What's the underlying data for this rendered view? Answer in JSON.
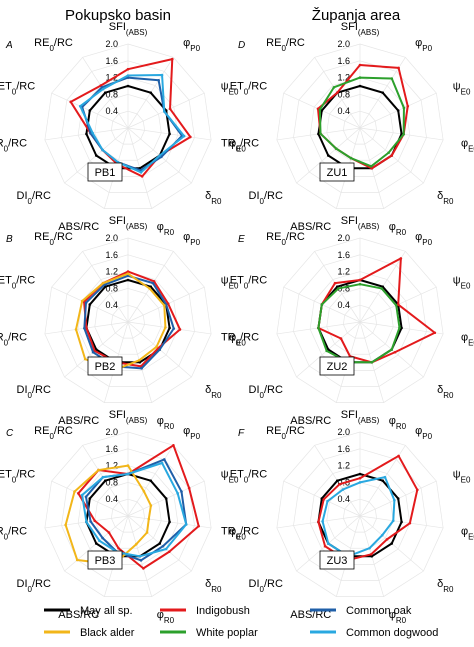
{
  "columns": [
    "Pokupsko basin",
    "Županja area"
  ],
  "series_styles": {
    "May all sp.": "#000000",
    "Indigobush": "#e31a1c",
    "Common oak": "#1f5fa8",
    "Black alder": "#f2b619",
    "White poplar": "#2ca02c",
    "Common dogwood": "#29a8e0"
  },
  "legend": {
    "items": [
      {
        "name": "May all sp.",
        "color": "#000000"
      },
      {
        "name": "Indigobush",
        "color": "#e31a1c"
      },
      {
        "name": "Common oak",
        "color": "#1f5fa8"
      },
      {
        "name": "Black alder",
        "color": "#f2b619"
      },
      {
        "name": "White poplar",
        "color": "#2ca02c"
      },
      {
        "name": "Common dogwood",
        "color": "#29a8e0"
      }
    ]
  },
  "chart_data": [
    {
      "type": "radar",
      "panel": "A",
      "id": "PB1",
      "column": "Pokupsko basin",
      "axes": [
        "SFI(ABS)",
        "φP0",
        "ψE0",
        "φE0",
        "δR0",
        "φR0",
        "ABS/RC",
        "DI0/RC",
        "TR0/RC",
        "ET0/RC",
        "RE0/RC"
      ],
      "rlim": [
        0,
        2.0
      ],
      "ticks": [
        0.4,
        0.8,
        1.2,
        1.6,
        2.0
      ],
      "series": [
        {
          "name": "May all sp.",
          "values": [
            1.0,
            1.0,
            1.0,
            1.0,
            1.0,
            1.0,
            1.0,
            1.0,
            1.0,
            1.0,
            1.0
          ]
        },
        {
          "name": "Indigobush",
          "values": [
            1.4,
            1.95,
            1.1,
            1.5,
            1.0,
            1.2,
            0.9,
            0.8,
            0.9,
            1.5,
            1.2
          ]
        },
        {
          "name": "Common oak",
          "values": [
            1.2,
            1.35,
            0.95,
            1.3,
            1.05,
            1.05,
            0.85,
            0.8,
            0.9,
            1.2,
            1.15
          ]
        },
        {
          "name": "Common dogwood",
          "values": [
            1.25,
            1.5,
            0.95,
            1.35,
            1.0,
            1.1,
            0.85,
            0.8,
            0.85,
            1.25,
            1.1
          ]
        }
      ]
    },
    {
      "type": "radar",
      "panel": "B",
      "id": "PB2",
      "column": "Pokupsko basin",
      "axes": [
        "SFI(ABS)",
        "φP0",
        "ψE0",
        "φE0",
        "δR0",
        "φR0",
        "ABS/RC",
        "DI0/RC",
        "TR0/RC",
        "ET0/RC",
        "RE0/RC"
      ],
      "rlim": [
        0,
        2.0
      ],
      "ticks": [
        0.4,
        0.8,
        1.2,
        1.6,
        2.0
      ],
      "series": [
        {
          "name": "May all sp.",
          "values": [
            1.0,
            1.0,
            1.0,
            1.0,
            1.0,
            1.0,
            1.0,
            1.0,
            1.0,
            1.0,
            1.0
          ]
        },
        {
          "name": "Indigobush",
          "values": [
            1.2,
            1.15,
            1.05,
            1.25,
            0.95,
            1.1,
            1.0,
            1.05,
            1.0,
            1.15,
            1.1
          ]
        },
        {
          "name": "Common oak",
          "values": [
            1.1,
            1.1,
            1.0,
            1.1,
            1.0,
            1.15,
            1.1,
            1.1,
            1.05,
            1.1,
            1.05
          ]
        },
        {
          "name": "Black alder",
          "values": [
            1.15,
            0.95,
            0.95,
            0.9,
            0.9,
            0.95,
            1.2,
            1.35,
            1.25,
            1.2,
            1.1
          ]
        }
      ]
    },
    {
      "type": "radar",
      "panel": "C",
      "id": "PB3",
      "column": "Pokupsko basin",
      "axes": [
        "SFI(ABS)",
        "φP0",
        "ψE0",
        "φE0",
        "δR0",
        "φR0",
        "ABS/RC",
        "DI0/RC",
        "TR0/RC",
        "ET0/RC",
        "RE0/RC"
      ],
      "rlim": [
        0,
        2.0
      ],
      "ticks": [
        0.4,
        0.8,
        1.2,
        1.6,
        2.0
      ],
      "series": [
        {
          "name": "May all sp.",
          "values": [
            1.0,
            1.0,
            1.0,
            1.0,
            1.0,
            1.0,
            1.0,
            1.0,
            1.0,
            1.0,
            1.0
          ]
        },
        {
          "name": "Indigobush",
          "values": [
            1.0,
            2.0,
            1.6,
            1.7,
            1.3,
            1.3,
            0.8,
            0.6,
            0.8,
            1.3,
            1.3
          ]
        },
        {
          "name": "Common oak",
          "values": [
            1.0,
            1.6,
            1.4,
            1.4,
            1.1,
            1.1,
            0.9,
            0.8,
            0.9,
            1.1,
            1.1
          ]
        },
        {
          "name": "Black alder",
          "values": [
            1.2,
            0.7,
            0.6,
            0.5,
            0.6,
            0.7,
            1.2,
            1.6,
            1.5,
            1.4,
            1.3
          ]
        },
        {
          "name": "Common dogwood",
          "values": [
            1.0,
            1.5,
            1.3,
            1.4,
            1.2,
            1.0,
            0.9,
            0.9,
            1.0,
            1.2,
            1.1
          ]
        }
      ]
    },
    {
      "type": "radar",
      "panel": "D",
      "id": "ZU1",
      "column": "Županja area",
      "axes": [
        "SFI(ABS)",
        "φP0",
        "ψE0",
        "φE0",
        "δR0",
        "φR0",
        "ABS/RC",
        "DI0/RC",
        "TR0/RC",
        "ET0/RC",
        "RE0/RC"
      ],
      "rlim": [
        0,
        2.0
      ],
      "ticks": [
        0.4,
        0.8,
        1.2,
        1.6,
        2.0
      ],
      "series": [
        {
          "name": "May all sp.",
          "values": [
            1.0,
            1.0,
            1.0,
            1.0,
            1.0,
            1.0,
            1.0,
            1.0,
            1.0,
            1.0,
            1.0
          ]
        },
        {
          "name": "Indigobush",
          "values": [
            1.5,
            1.7,
            1.25,
            1.05,
            1.0,
            1.0,
            0.75,
            0.75,
            0.95,
            1.1,
            1.0
          ]
        },
        {
          "name": "White poplar",
          "values": [
            1.2,
            1.4,
            1.15,
            1.05,
            0.9,
            0.95,
            0.75,
            0.75,
            0.95,
            1.05,
            1.15
          ]
        }
      ]
    },
    {
      "type": "radar",
      "panel": "E",
      "id": "ZU2",
      "column": "Županja area",
      "axes": [
        "SFI(ABS)",
        "φP0",
        "ψE0",
        "φE0",
        "δR0",
        "φR0",
        "ABS/RC",
        "DI0/RC",
        "TR0/RC",
        "ET0/RC",
        "RE0/RC"
      ],
      "rlim": [
        0,
        2.0
      ],
      "ticks": [
        0.4,
        0.8,
        1.2,
        1.6,
        2.0
      ],
      "series": [
        {
          "name": "May all sp.",
          "values": [
            1.0,
            1.0,
            1.0,
            1.0,
            1.0,
            1.0,
            1.0,
            1.0,
            1.0,
            1.0,
            1.0
          ]
        },
        {
          "name": "Indigobush",
          "values": [
            1.0,
            1.8,
            1.0,
            1.8,
            1.1,
            1.0,
            0.85,
            0.6,
            1.0,
            1.0,
            1.1
          ]
        },
        {
          "name": "White poplar",
          "values": [
            0.9,
            0.95,
            0.95,
            0.95,
            1.0,
            1.0,
            1.0,
            1.05,
            1.0,
            1.0,
            0.95
          ]
        }
      ]
    },
    {
      "type": "radar",
      "panel": "F",
      "id": "ZU3",
      "column": "Županja area",
      "axes": [
        "SFI(ABS)",
        "φP0",
        "ψE0",
        "φE0",
        "δR0",
        "φR0",
        "ABS/RC",
        "DI0/RC",
        "TR0/RC",
        "ET0/RC",
        "RE0/RC"
      ],
      "rlim": [
        0,
        2.0
      ],
      "ticks": [
        0.4,
        0.8,
        1.2,
        1.6,
        2.0
      ],
      "series": [
        {
          "name": "May all sp.",
          "values": [
            1.0,
            1.0,
            1.0,
            1.0,
            1.0,
            1.0,
            1.0,
            1.0,
            1.0,
            1.0,
            1.0
          ]
        },
        {
          "name": "Indigobush",
          "values": [
            0.9,
            1.7,
            1.5,
            1.2,
            0.85,
            0.95,
            1.1,
            1.1,
            1.0,
            0.95,
            0.9
          ]
        },
        {
          "name": "Common dogwood",
          "values": [
            0.8,
            1.1,
            0.9,
            0.8,
            0.7,
            0.8,
            1.0,
            1.0,
            0.9,
            0.85,
            0.75
          ]
        }
      ]
    }
  ]
}
